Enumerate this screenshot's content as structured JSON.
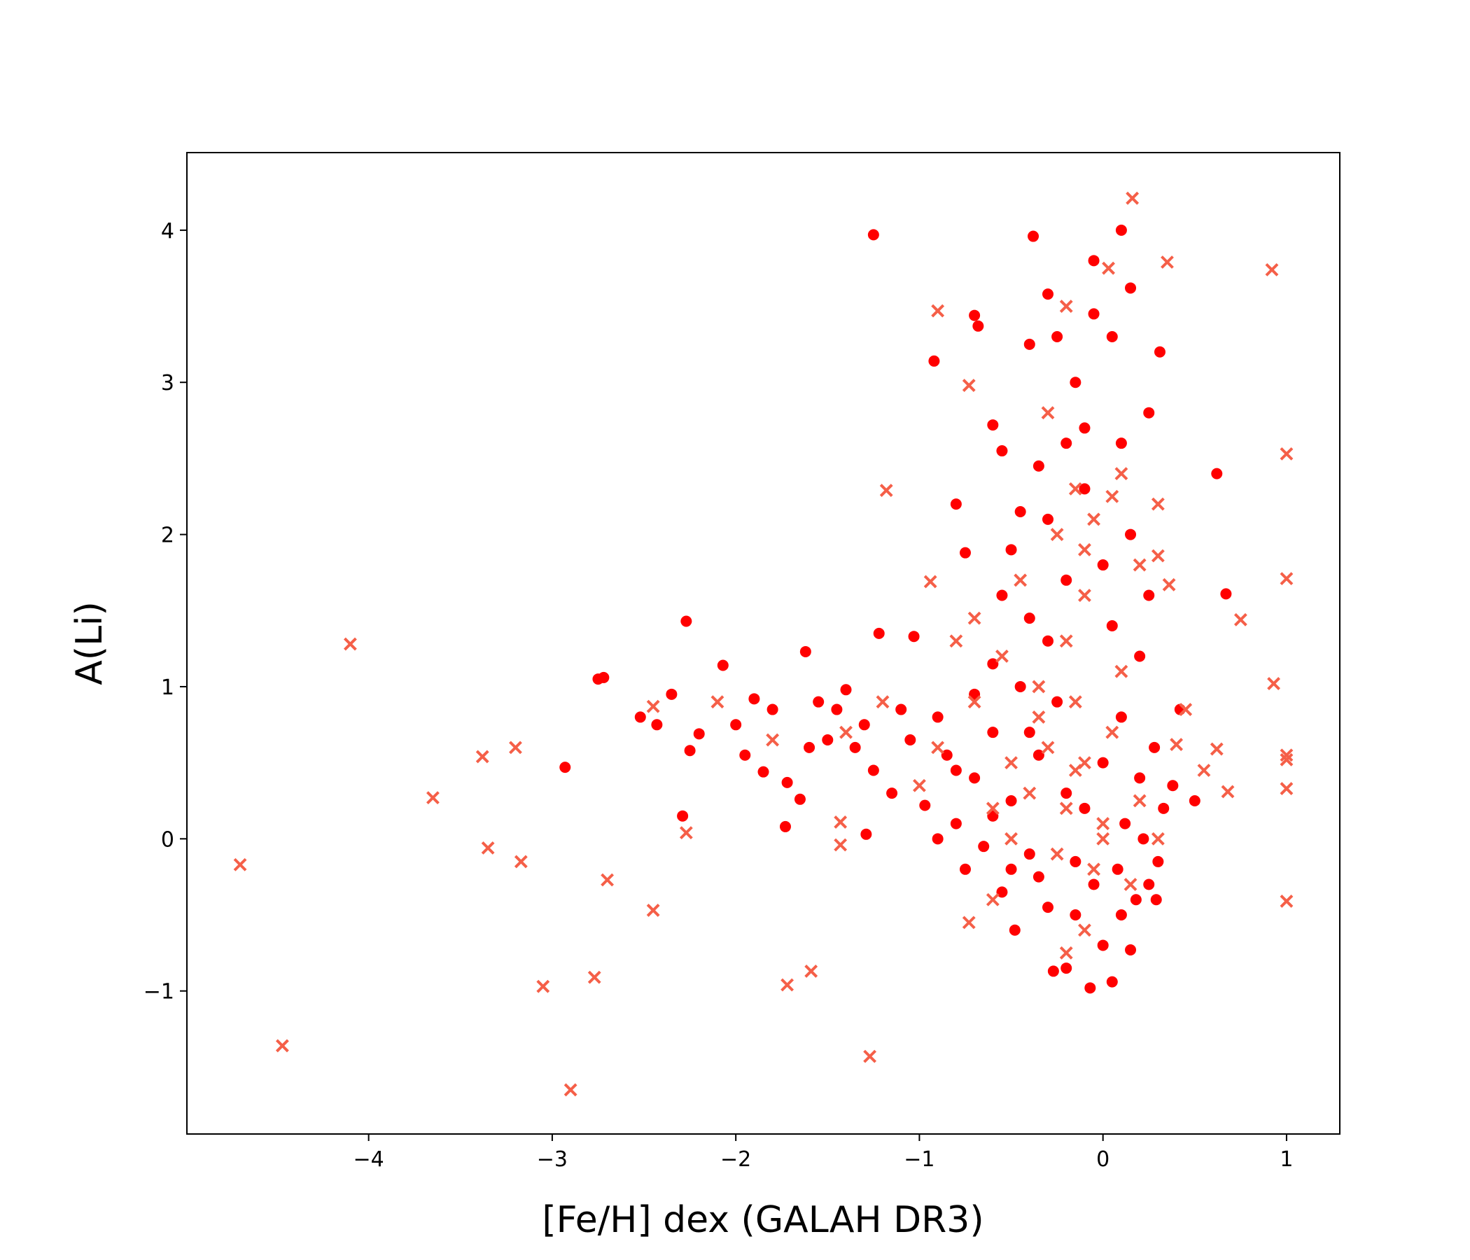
{
  "chart_data": {
    "type": "scatter",
    "x_label": "[Fe/H] dex (GALAH DR3)",
    "y_label": "A(Li)",
    "xlim": [
      -4.99,
      1.29
    ],
    "ylim": [
      -1.94,
      4.51
    ],
    "xticks": [
      {
        "value": -4,
        "label": "−4"
      },
      {
        "value": -3,
        "label": "−3"
      },
      {
        "value": -2,
        "label": "−2"
      },
      {
        "value": -1,
        "label": "−1"
      },
      0,
      1
    ],
    "yticks": [
      {
        "value": -1,
        "label": "−1"
      },
      0,
      1,
      2,
      3,
      4
    ],
    "grid": false,
    "series": [
      {
        "color": "#ff0000",
        "marker": "circle",
        "x": [
          -1.25,
          -0.38,
          0.1,
          -2.93,
          -2.75,
          -2.72,
          -2.27,
          -2.29,
          -1.73,
          -1.29,
          0.62,
          0.67,
          0.5,
          -0.92,
          -0.7,
          -0.68,
          -0.4,
          -0.3,
          -0.05,
          0.15,
          0.31,
          0.25,
          -0.6,
          -0.8,
          -0.75,
          -1.22,
          -1.03,
          -2.52,
          -2.43,
          -2.35,
          -2.2,
          -2.25,
          -2.07,
          -2.0,
          -1.95,
          -1.85,
          -1.8,
          -1.72,
          -1.65,
          -1.62,
          -1.55,
          -1.5,
          -1.4,
          -1.35,
          -1.25,
          -1.15,
          -1.05,
          -0.97,
          -0.9,
          -0.85,
          -0.8,
          -0.75,
          -0.7,
          -0.65,
          -0.6,
          -0.55,
          -0.5,
          -0.48,
          -0.45,
          -0.4,
          -0.35,
          -0.3,
          -0.27,
          -0.2,
          -0.15,
          -0.1,
          -0.07,
          -0.05,
          0.0,
          0.05,
          0.08,
          0.12,
          0.15,
          0.18,
          0.22,
          0.25,
          0.29,
          0.33,
          0.38,
          0.42,
          0.2,
          0.25,
          0.15,
          -0.1,
          -0.2,
          -0.35,
          -0.45,
          -0.5,
          -0.55,
          -0.3,
          0.05,
          -0.15,
          -0.05,
          0.05,
          -0.25,
          -0.1,
          -0.55,
          -0.3,
          0.1,
          0.0,
          -0.2,
          -0.4,
          -0.6,
          -0.7,
          -0.25,
          0.1,
          0.28,
          0.3,
          -0.9,
          -0.6,
          -0.35,
          -0.15,
          0.1,
          -0.5,
          -0.8,
          -1.1,
          -1.3,
          -1.45,
          -1.6,
          -1.9,
          0.2,
          0.0,
          -0.2,
          -0.4
        ],
        "values": [
          3.97,
          3.96,
          4.0,
          0.47,
          1.05,
          1.06,
          1.43,
          0.15,
          0.08,
          0.03,
          2.4,
          1.61,
          0.25,
          3.14,
          3.44,
          3.37,
          3.25,
          3.58,
          3.8,
          3.62,
          3.2,
          2.8,
          2.72,
          2.2,
          1.88,
          1.35,
          1.33,
          0.8,
          0.75,
          0.95,
          0.69,
          0.58,
          1.14,
          0.75,
          0.55,
          0.44,
          0.85,
          0.37,
          0.26,
          1.23,
          0.9,
          0.65,
          0.98,
          0.6,
          0.45,
          0.3,
          0.65,
          0.22,
          0.8,
          0.55,
          0.1,
          -0.2,
          0.4,
          -0.05,
          0.7,
          -0.35,
          0.25,
          -0.6,
          1.0,
          -0.1,
          0.55,
          -0.45,
          -0.87,
          -0.85,
          -0.5,
          0.2,
          -0.98,
          -0.3,
          -0.7,
          -0.94,
          -0.2,
          0.1,
          -0.73,
          -0.4,
          0.0,
          -0.3,
          -0.4,
          0.2,
          0.35,
          0.85,
          1.2,
          1.6,
          2.0,
          2.3,
          2.6,
          2.45,
          2.15,
          1.9,
          1.6,
          1.3,
          1.4,
          3.0,
          3.45,
          3.3,
          3.3,
          2.7,
          2.55,
          2.1,
          2.6,
          1.8,
          1.7,
          1.45,
          1.15,
          0.95,
          0.9,
          0.8,
          0.6,
          -0.15,
          0.0,
          0.15,
          -0.25,
          -0.15,
          -0.5,
          -0.2,
          0.45,
          0.85,
          0.75,
          0.85,
          0.6,
          0.92,
          0.4,
          0.5,
          0.3,
          0.7
        ]
      },
      {
        "color": "#f55f48",
        "marker": "x",
        "x": [
          0.16,
          0.35,
          0.92,
          1.0,
          1.0,
          0.93,
          1.0,
          1.0,
          1.0,
          1.0,
          0.68,
          0.62,
          0.75,
          0.36,
          0.3,
          0.3,
          -0.9,
          -0.73,
          -1.18,
          -0.94,
          -4.1,
          -4.7,
          -4.47,
          -3.65,
          -3.38,
          -3.35,
          -3.2,
          -3.17,
          -3.05,
          -2.9,
          -2.77,
          -2.7,
          -2.45,
          -2.45,
          -2.27,
          -1.72,
          -1.59,
          -1.43,
          -1.43,
          -1.27,
          -0.73,
          0.4,
          0.55,
          0.45,
          -0.1,
          -0.2,
          -0.3,
          -0.15,
          0.0,
          -0.05,
          -0.25,
          -0.4,
          -0.35,
          0.05,
          0.1,
          -0.2,
          -0.1,
          -0.05,
          -0.15,
          0.05,
          -0.25,
          -0.1,
          0.1,
          -0.3,
          -0.2,
          0.03,
          -0.5,
          -0.6,
          -0.7,
          -0.8,
          -0.9,
          -1.0,
          -1.2,
          -1.4,
          -1.8,
          -2.1,
          -0.55,
          0.2,
          0.3,
          0.15,
          -0.1,
          -0.2,
          -0.6,
          -0.5,
          -0.45,
          -0.7,
          0.2,
          -0.35,
          0.0,
          -0.15
        ],
        "values": [
          4.21,
          3.79,
          3.74,
          2.53,
          1.71,
          1.02,
          0.55,
          0.52,
          0.33,
          -0.41,
          0.31,
          0.59,
          1.44,
          1.67,
          1.86,
          2.2,
          3.47,
          2.98,
          2.29,
          1.69,
          1.28,
          -0.17,
          -1.36,
          0.27,
          0.54,
          -0.06,
          0.6,
          -0.15,
          -0.97,
          -1.65,
          -0.91,
          -0.27,
          -0.47,
          0.87,
          0.04,
          -0.96,
          -0.87,
          0.11,
          -0.04,
          -1.43,
          -0.55,
          0.62,
          0.45,
          0.85,
          0.5,
          0.2,
          0.6,
          0.9,
          0.1,
          -0.2,
          -0.1,
          0.3,
          0.8,
          0.7,
          1.1,
          1.3,
          1.6,
          2.1,
          2.3,
          2.25,
          2.0,
          1.9,
          2.4,
          2.8,
          3.5,
          3.75,
          0.5,
          0.2,
          0.9,
          1.3,
          0.6,
          0.35,
          0.9,
          0.7,
          0.65,
          0.9,
          1.2,
          0.25,
          0.0,
          -0.3,
          -0.6,
          -0.75,
          -0.4,
          0.0,
          1.7,
          1.45,
          1.8,
          1.0,
          0.0,
          0.45
        ]
      }
    ]
  }
}
